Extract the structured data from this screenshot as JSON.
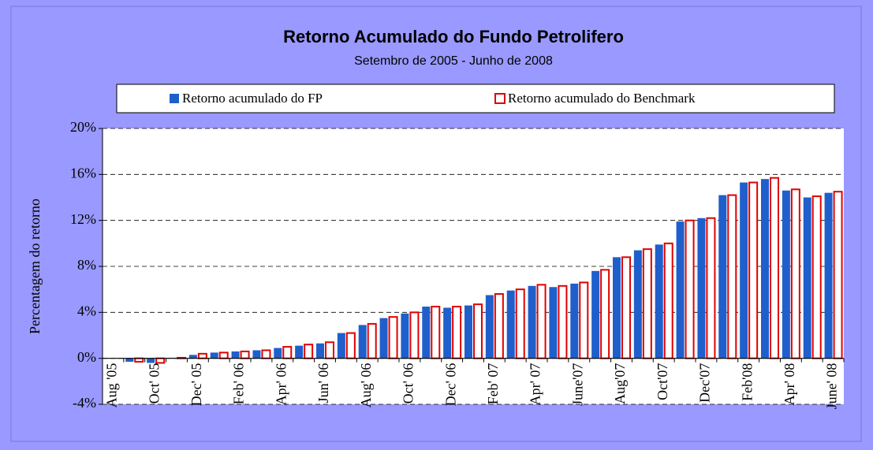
{
  "chart_data": {
    "type": "bar",
    "title": "Retorno Acumulado do Fundo Petrolifero",
    "subtitle": "Setembro de 2005 - Junho de 2008",
    "y_label": "Percentagem do retorno",
    "categories": [
      "Aug '05",
      null,
      "Oct' 05",
      null,
      "Dec' 05",
      null,
      "Feb' 06",
      null,
      "Apr' 06",
      null,
      "Jun' 06",
      null,
      "Aug' 06",
      null,
      "Oct' 06",
      null,
      "Dec' 06",
      null,
      "Feb' 07",
      null,
      "Apr' 07",
      null,
      "June'07",
      null,
      "Aug'07",
      null,
      "Oct'07",
      null,
      "Dec'07",
      null,
      "Feb'08",
      null,
      "Apr' 08",
      null,
      "June' 08"
    ],
    "series": [
      {
        "name": "Retorno acumulado do FP",
        "color": "#1f5fcc",
        "values": [
          0,
          -0.3,
          -0.4,
          0.05,
          0.3,
          0.5,
          0.6,
          0.7,
          0.9,
          1.1,
          1.3,
          2.2,
          2.9,
          3.5,
          3.9,
          4.5,
          4.4,
          4.6,
          5.5,
          5.9,
          6.3,
          6.2,
          6.5,
          7.6,
          8.8,
          9.4,
          9.9,
          11.9,
          12.2,
          14.2,
          15.3,
          15.6,
          14.6,
          14.0,
          14.4
        ]
      },
      {
        "name": "Retorno acumulado do Benchmark",
        "color": "#e00000",
        "values": [
          0,
          -0.3,
          -0.4,
          0.05,
          0.4,
          0.5,
          0.6,
          0.7,
          1.0,
          1.2,
          1.4,
          2.2,
          3.0,
          3.6,
          4.0,
          4.5,
          4.5,
          4.7,
          5.6,
          6.0,
          6.4,
          6.3,
          6.6,
          7.7,
          8.8,
          9.5,
          10.0,
          12.0,
          12.2,
          14.2,
          15.3,
          15.7,
          14.7,
          14.1,
          14.5
        ]
      }
    ],
    "ylim": [
      -4,
      20
    ],
    "yticks": [
      {
        "value": -4,
        "label": "-4%"
      },
      {
        "value": 0,
        "label": "0%"
      },
      {
        "value": 4,
        "label": "4%"
      },
      {
        "value": 8,
        "label": "8%"
      },
      {
        "value": 12,
        "label": "12%"
      },
      {
        "value": 16,
        "label": "16%"
      },
      {
        "value": 20,
        "label": "20%"
      }
    ],
    "grid": true,
    "legend": "top"
  }
}
